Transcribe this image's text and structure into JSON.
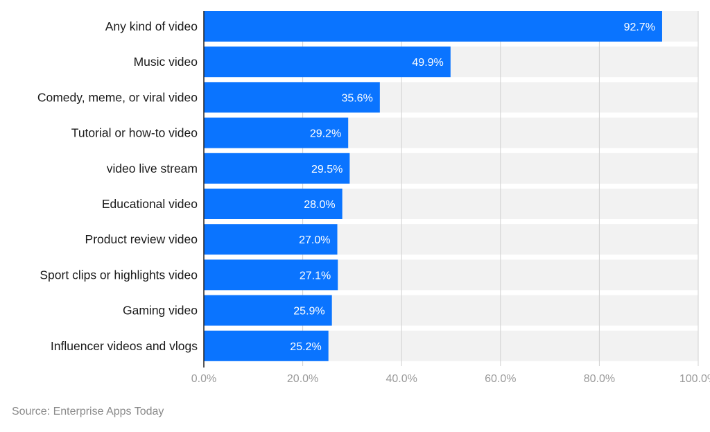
{
  "chart_data": {
    "type": "bar",
    "orientation": "horizontal",
    "categories": [
      "Any kind of video",
      "Music video",
      "Comedy, meme, or viral video",
      "Tutorial or how-to video",
      "video live stream",
      "Educational video",
      "Product review video",
      "Sport clips or highlights video",
      "Gaming video",
      "Influencer videos and vlogs"
    ],
    "values": [
      92.7,
      49.9,
      35.6,
      29.2,
      29.5,
      28.0,
      27.0,
      27.1,
      25.9,
      25.2
    ],
    "value_labels": [
      "92.7%",
      "49.9%",
      "35.6%",
      "29.2%",
      "29.5%",
      "28.0%",
      "27.0%",
      "27.1%",
      "25.9%",
      "25.2%"
    ],
    "xlim": [
      0,
      100
    ],
    "x_ticks": [
      "0.0%",
      "20.0%",
      "40.0%",
      "60.0%",
      "80.0%",
      "100.0%"
    ],
    "grid": true,
    "colors": {
      "bar": "#0a74ff",
      "track": "#f2f2f2",
      "grid": "#d0d0d0",
      "axis": "#222222"
    }
  },
  "source": "Source: Enterprise Apps Today"
}
